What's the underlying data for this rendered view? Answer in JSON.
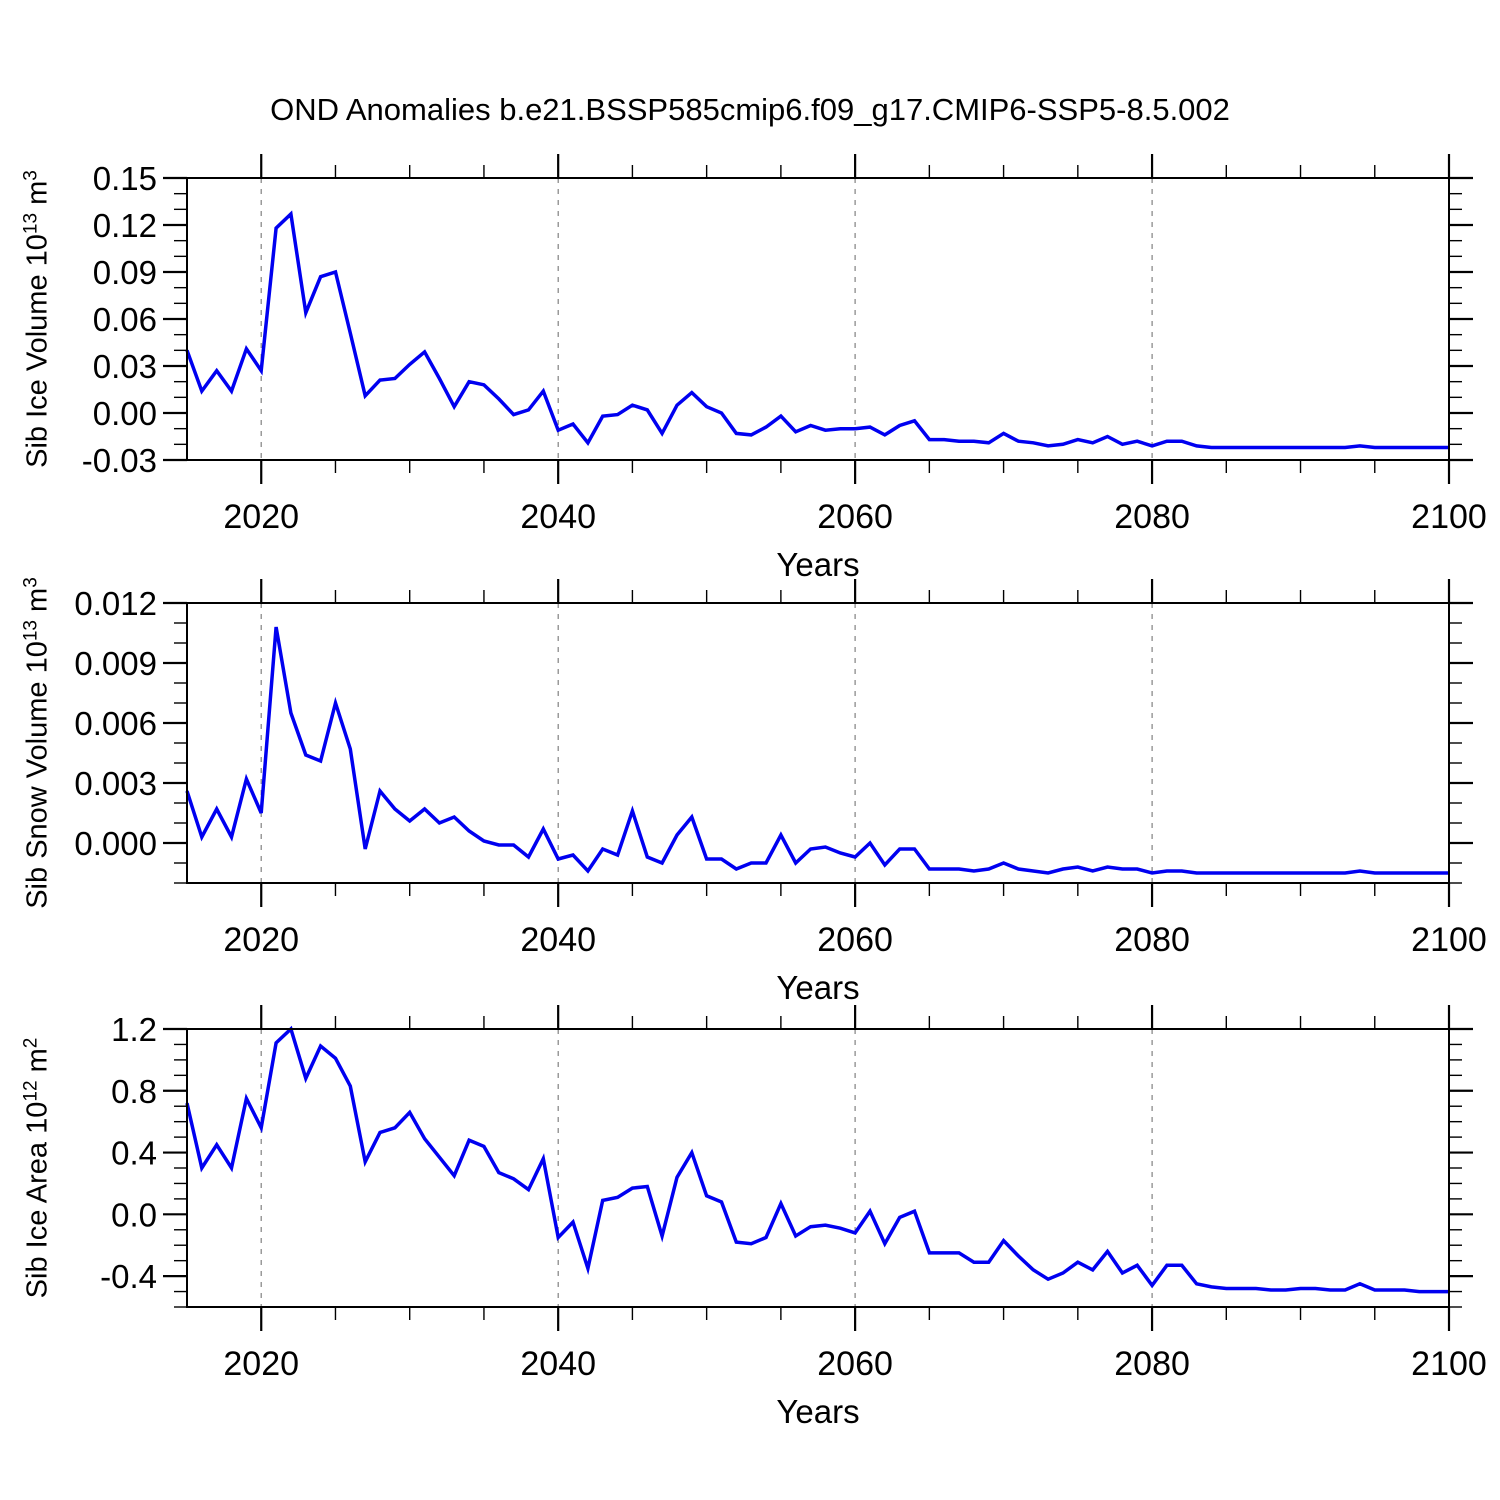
{
  "title": "OND Anomalies b.e21.BSSP585cmip6.f09_g17.CMIP6-SSP5-8.5.002",
  "colors": {
    "line": "#0000f0",
    "frame": "#000000",
    "gridline": "#808080",
    "text": "#000000",
    "background": "#ffffff"
  },
  "x_axis": {
    "label": "Years",
    "tick_labels": [
      "2020",
      "2040",
      "2060",
      "2080",
      "2100"
    ],
    "tick_values": [
      2020,
      2040,
      2060,
      2080,
      2100
    ],
    "minor_step": 5,
    "range": [
      2015,
      2100
    ],
    "gridline_years": [
      2020,
      2040,
      2060,
      2080
    ]
  },
  "years": [
    2015,
    2016,
    2017,
    2018,
    2019,
    2020,
    2021,
    2022,
    2023,
    2024,
    2025,
    2026,
    2027,
    2028,
    2029,
    2030,
    2031,
    2032,
    2033,
    2034,
    2035,
    2036,
    2037,
    2038,
    2039,
    2040,
    2041,
    2042,
    2043,
    2044,
    2045,
    2046,
    2047,
    2048,
    2049,
    2050,
    2051,
    2052,
    2053,
    2054,
    2055,
    2056,
    2057,
    2058,
    2059,
    2060,
    2061,
    2062,
    2063,
    2064,
    2065,
    2066,
    2067,
    2068,
    2069,
    2070,
    2071,
    2072,
    2073,
    2074,
    2075,
    2076,
    2077,
    2078,
    2079,
    2080,
    2081,
    2082,
    2083,
    2084,
    2085,
    2086,
    2087,
    2088,
    2089,
    2090,
    2091,
    2092,
    2093,
    2094,
    2095,
    2096,
    2097,
    2098,
    2099,
    2100
  ],
  "chart_data": [
    {
      "type": "line",
      "name": "sib-ice-volume",
      "ylabel": {
        "base": "Sib Ice Volume 10",
        "exp": "13",
        "unit": " m",
        "unit_exp": "3"
      },
      "ytick_labels": [
        "0.15",
        "0.12",
        "0.09",
        "0.06",
        "0.03",
        "0.00",
        "-0.03"
      ],
      "ytick_values": [
        0.15,
        0.12,
        0.09,
        0.06,
        0.03,
        0.0,
        -0.03
      ],
      "y_minor_step": 0.01,
      "ylim": [
        -0.03,
        0.15
      ],
      "values": [
        0.04,
        0.014,
        0.027,
        0.014,
        0.041,
        0.027,
        0.118,
        0.127,
        0.064,
        0.087,
        0.09,
        0.051,
        0.011,
        0.021,
        0.022,
        0.031,
        0.039,
        0.022,
        0.004,
        0.02,
        0.018,
        0.009,
        -0.001,
        0.002,
        0.014,
        -0.011,
        -0.007,
        -0.019,
        -0.002,
        -0.001,
        0.005,
        0.002,
        -0.013,
        0.005,
        0.013,
        0.004,
        0.0,
        -0.013,
        -0.014,
        -0.009,
        -0.002,
        -0.012,
        -0.008,
        -0.011,
        -0.01,
        -0.01,
        -0.009,
        -0.014,
        -0.008,
        -0.005,
        -0.017,
        -0.017,
        -0.018,
        -0.018,
        -0.019,
        -0.013,
        -0.018,
        -0.019,
        -0.021,
        -0.02,
        -0.017,
        -0.019,
        -0.015,
        -0.02,
        -0.018,
        -0.021,
        -0.018,
        -0.018,
        -0.021,
        -0.022,
        -0.022,
        -0.022,
        -0.022,
        -0.022,
        -0.022,
        -0.022,
        -0.022,
        -0.022,
        -0.022,
        -0.021,
        -0.022,
        -0.022,
        -0.022,
        -0.022,
        -0.022,
        -0.022
      ]
    },
    {
      "type": "line",
      "name": "sib-snow-volume",
      "ylabel": {
        "base": "Sib Snow Volume 10",
        "exp": "13",
        "unit": " m",
        "unit_exp": "3"
      },
      "ytick_labels": [
        "0.012",
        "0.009",
        "0.006",
        "0.003",
        "0.000"
      ],
      "ytick_values": [
        0.012,
        0.009,
        0.006,
        0.003,
        0.0
      ],
      "y_minor_step": 0.001,
      "ylim": [
        -0.002,
        0.012
      ],
      "values": [
        0.0026,
        0.0003,
        0.0017,
        0.0003,
        0.0032,
        0.0015,
        0.0108,
        0.0065,
        0.0044,
        0.0041,
        0.007,
        0.0047,
        -0.0003,
        0.0026,
        0.0017,
        0.0011,
        0.0017,
        0.001,
        0.0013,
        0.0006,
        0.0001,
        -0.0001,
        -0.0001,
        -0.0007,
        0.0007,
        -0.0008,
        -0.0006,
        -0.0014,
        -0.0003,
        -0.0006,
        0.0016,
        -0.0007,
        -0.001,
        0.0004,
        0.0013,
        -0.0008,
        -0.0008,
        -0.0013,
        -0.001,
        -0.001,
        0.0004,
        -0.001,
        -0.0003,
        -0.0002,
        -0.0005,
        -0.0007,
        0.0,
        -0.0011,
        -0.0003,
        -0.0003,
        -0.0013,
        -0.0013,
        -0.0013,
        -0.0014,
        -0.0013,
        -0.001,
        -0.0013,
        -0.0014,
        -0.0015,
        -0.0013,
        -0.0012,
        -0.0014,
        -0.0012,
        -0.0013,
        -0.0013,
        -0.0015,
        -0.0014,
        -0.0014,
        -0.0015,
        -0.0015,
        -0.0015,
        -0.0015,
        -0.0015,
        -0.0015,
        -0.0015,
        -0.0015,
        -0.0015,
        -0.0015,
        -0.0015,
        -0.0014,
        -0.0015,
        -0.0015,
        -0.0015,
        -0.0015,
        -0.0015,
        -0.0015
      ]
    },
    {
      "type": "line",
      "name": "sib-ice-area",
      "ylabel": {
        "base": "Sib Ice Area 10",
        "exp": "12",
        "unit": " m",
        "unit_exp": "2"
      },
      "ytick_labels": [
        "1.2",
        "0.8",
        "0.4",
        "0.0",
        "-0.4"
      ],
      "ytick_values": [
        1.2,
        0.8,
        0.4,
        0.0,
        -0.4
      ],
      "y_minor_step": 0.1,
      "ylim": [
        -0.6,
        1.2
      ],
      "values": [
        0.72,
        0.3,
        0.45,
        0.3,
        0.75,
        0.56,
        1.11,
        1.2,
        0.88,
        1.09,
        1.01,
        0.83,
        0.34,
        0.53,
        0.56,
        0.66,
        0.49,
        0.37,
        0.25,
        0.48,
        0.44,
        0.27,
        0.23,
        0.16,
        0.36,
        -0.15,
        -0.05,
        -0.35,
        0.09,
        0.11,
        0.17,
        0.18,
        -0.14,
        0.24,
        0.4,
        0.12,
        0.08,
        -0.18,
        -0.19,
        -0.15,
        0.07,
        -0.14,
        -0.08,
        -0.07,
        -0.09,
        -0.12,
        0.02,
        -0.19,
        -0.02,
        0.02,
        -0.25,
        -0.25,
        -0.25,
        -0.31,
        -0.31,
        -0.17,
        -0.27,
        -0.36,
        -0.42,
        -0.38,
        -0.31,
        -0.36,
        -0.24,
        -0.38,
        -0.33,
        -0.46,
        -0.33,
        -0.33,
        -0.45,
        -0.47,
        -0.48,
        -0.48,
        -0.48,
        -0.49,
        -0.49,
        -0.48,
        -0.48,
        -0.49,
        -0.49,
        -0.45,
        -0.49,
        -0.49,
        -0.49,
        -0.5,
        -0.5,
        -0.5
      ]
    }
  ]
}
